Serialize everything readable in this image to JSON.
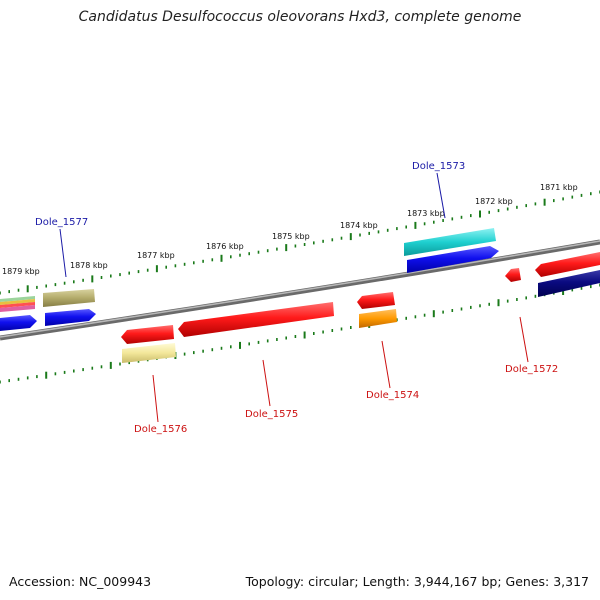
{
  "title": "Candidatus Desulfococcus oleovorans Hxd3, complete genome",
  "footer": {
    "accession": "Accession: NC_009943",
    "summary": "Topology: circular; Length: 3,944,167 bp; Genes: 3,317"
  },
  "scale_labels": [
    "1879 kbp",
    "1878 kbp",
    "1877 kbp",
    "1876 kbp",
    "1875 kbp",
    "1874 kbp",
    "1873 kbp",
    "1872 kbp",
    "1871 kbp"
  ],
  "gene_labels": [
    {
      "text": "Dole_1577",
      "color": "#1a1aa6",
      "strand": "forward"
    },
    {
      "text": "Dole_1573",
      "color": "#1a1aa6",
      "strand": "forward"
    },
    {
      "text": "Dole_1576",
      "color": "#cc1111",
      "strand": "reverse"
    },
    {
      "text": "Dole_1575",
      "color": "#cc1111",
      "strand": "reverse"
    },
    {
      "text": "Dole_1574",
      "color": "#cc1111",
      "strand": "reverse"
    },
    {
      "text": "Dole_1572",
      "color": "#cc1111",
      "strand": "reverse"
    }
  ],
  "colors": {
    "backbone": "#808080",
    "ticks": "#1a7a1a",
    "forward_label": "#1a1aa6",
    "reverse_label": "#cc1111"
  }
}
